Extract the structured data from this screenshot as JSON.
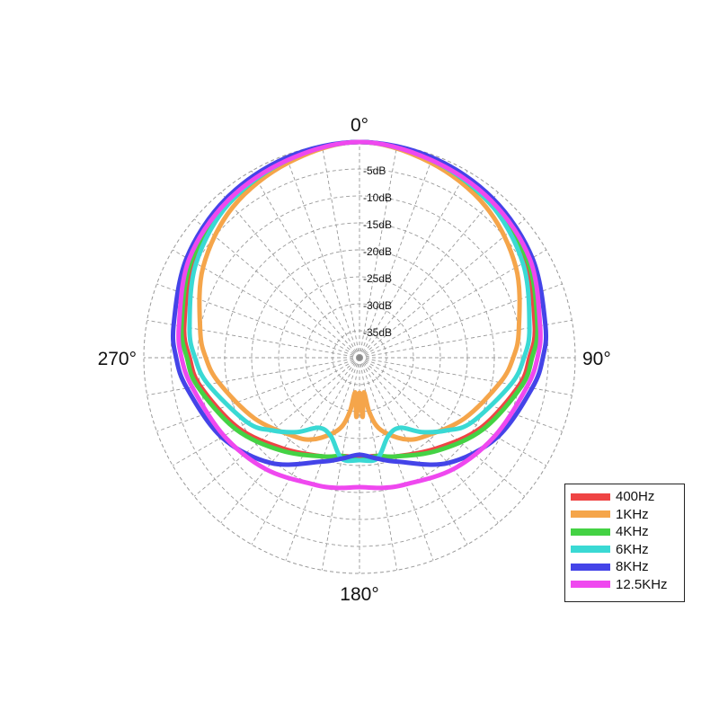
{
  "chart_data": {
    "type": "line",
    "coordinate_system": "polar",
    "angle_unit": "degrees",
    "angle_direction": "clockwise",
    "zero_angle_position": "top",
    "radius_unit": "dB",
    "r_range": [
      -40,
      0
    ],
    "radial_ticks": [
      -5,
      -10,
      -15,
      -20,
      -25,
      -30,
      -35
    ],
    "radial_tick_labels": [
      "-5dB",
      "-10dB",
      "-15dB",
      "-20dB",
      "-25dB",
      "-30dB",
      "-35dB"
    ],
    "angle_labels": [
      {
        "angle": 0,
        "text": "0°"
      },
      {
        "angle": 90,
        "text": "90°"
      },
      {
        "angle": 180,
        "text": "180°"
      },
      {
        "angle": 270,
        "text": "270°"
      }
    ],
    "angular_gridline_step": 10,
    "grid": true,
    "legend_position": "bottom-right",
    "series": [
      {
        "name": "400Hz",
        "color": "#ef4444",
        "angles": [
          0,
          20,
          40,
          60,
          80,
          90,
          100,
          120,
          140,
          160,
          170,
          180,
          190,
          200,
          220,
          240,
          260,
          270,
          280,
          300,
          320,
          340
        ],
        "values": [
          0,
          -1,
          -2.5,
          -4.5,
          -7,
          -8.5,
          -10,
          -14,
          -18,
          -20.5,
          -21.5,
          -21.5,
          -21.5,
          -20.5,
          -18,
          -14,
          -10,
          -8.5,
          -7,
          -4.5,
          -2.5,
          -1
        ]
      },
      {
        "name": "1KHz",
        "color": "#f5a54a",
        "angles": [
          0,
          20,
          40,
          60,
          80,
          90,
          100,
          120,
          140,
          150,
          160,
          166,
          170,
          173,
          177,
          180,
          183,
          187,
          190,
          194,
          200,
          210,
          220,
          240,
          260,
          270,
          280,
          300,
          320,
          340
        ],
        "values": [
          0,
          -1.5,
          -3.5,
          -6.5,
          -10,
          -11.5,
          -13.5,
          -17.5,
          -21,
          -22.5,
          -25,
          -27,
          -30,
          -33.5,
          -29,
          -33.5,
          -29,
          -33.5,
          -30,
          -27,
          -25,
          -22.5,
          -21,
          -17.5,
          -13.5,
          -11.5,
          -10,
          -6.5,
          -3.5,
          -1.5
        ]
      },
      {
        "name": "4KHz",
        "color": "#44d244",
        "angles": [
          0,
          20,
          40,
          60,
          80,
          90,
          100,
          120,
          140,
          160,
          170,
          180,
          190,
          200,
          220,
          240,
          260,
          270,
          280,
          300,
          320,
          340
        ],
        "values": [
          0,
          -1,
          -2.5,
          -4,
          -6.5,
          -8,
          -9.5,
          -13.5,
          -17.5,
          -20.5,
          -21.5,
          -21,
          -21.5,
          -20.5,
          -17.5,
          -13.5,
          -9.5,
          -8,
          -6.5,
          -4,
          -2.5,
          -1
        ]
      },
      {
        "name": "6KHz",
        "color": "#3ad9d4",
        "angles": [
          0,
          20,
          40,
          60,
          80,
          90,
          100,
          120,
          130,
          140,
          150,
          160,
          170,
          180,
          190,
          200,
          210,
          220,
          230,
          240,
          260,
          270,
          280,
          300,
          320,
          340
        ],
        "values": [
          0,
          -1,
          -2.5,
          -5,
          -8,
          -9.5,
          -11.5,
          -16,
          -19,
          -22,
          -25,
          -24.5,
          -21,
          -21,
          -21,
          -24.5,
          -25,
          -22,
          -19,
          -16,
          -11.5,
          -9.5,
          -8,
          -5,
          -2.5,
          -1
        ]
      },
      {
        "name": "8KHz",
        "color": "#4444e8",
        "angles": [
          0,
          20,
          40,
          60,
          80,
          90,
          100,
          120,
          140,
          160,
          170,
          180,
          190,
          200,
          220,
          240,
          260,
          270,
          280,
          300,
          320,
          340
        ],
        "values": [
          0,
          -0.5,
          -1.5,
          -3,
          -5,
          -6,
          -7.5,
          -10.5,
          -14.5,
          -19.5,
          -21,
          -22,
          -21,
          -19.5,
          -14.5,
          -10.5,
          -7.5,
          -6,
          -5,
          -3,
          -1.5,
          -0.5
        ]
      },
      {
        "name": "12.5KHz",
        "color": "#ef48ef",
        "angles": [
          0,
          20,
          40,
          60,
          80,
          90,
          100,
          120,
          140,
          160,
          170,
          180,
          190,
          200,
          220,
          240,
          260,
          270,
          280,
          300,
          320,
          340
        ],
        "values": [
          0,
          -1,
          -2,
          -3.5,
          -6,
          -7,
          -8.5,
          -11,
          -13,
          -15,
          -15.5,
          -16,
          -15.5,
          -15,
          -13,
          -11,
          -8.5,
          -7,
          -6,
          -3.5,
          -2,
          -1
        ]
      }
    ]
  }
}
